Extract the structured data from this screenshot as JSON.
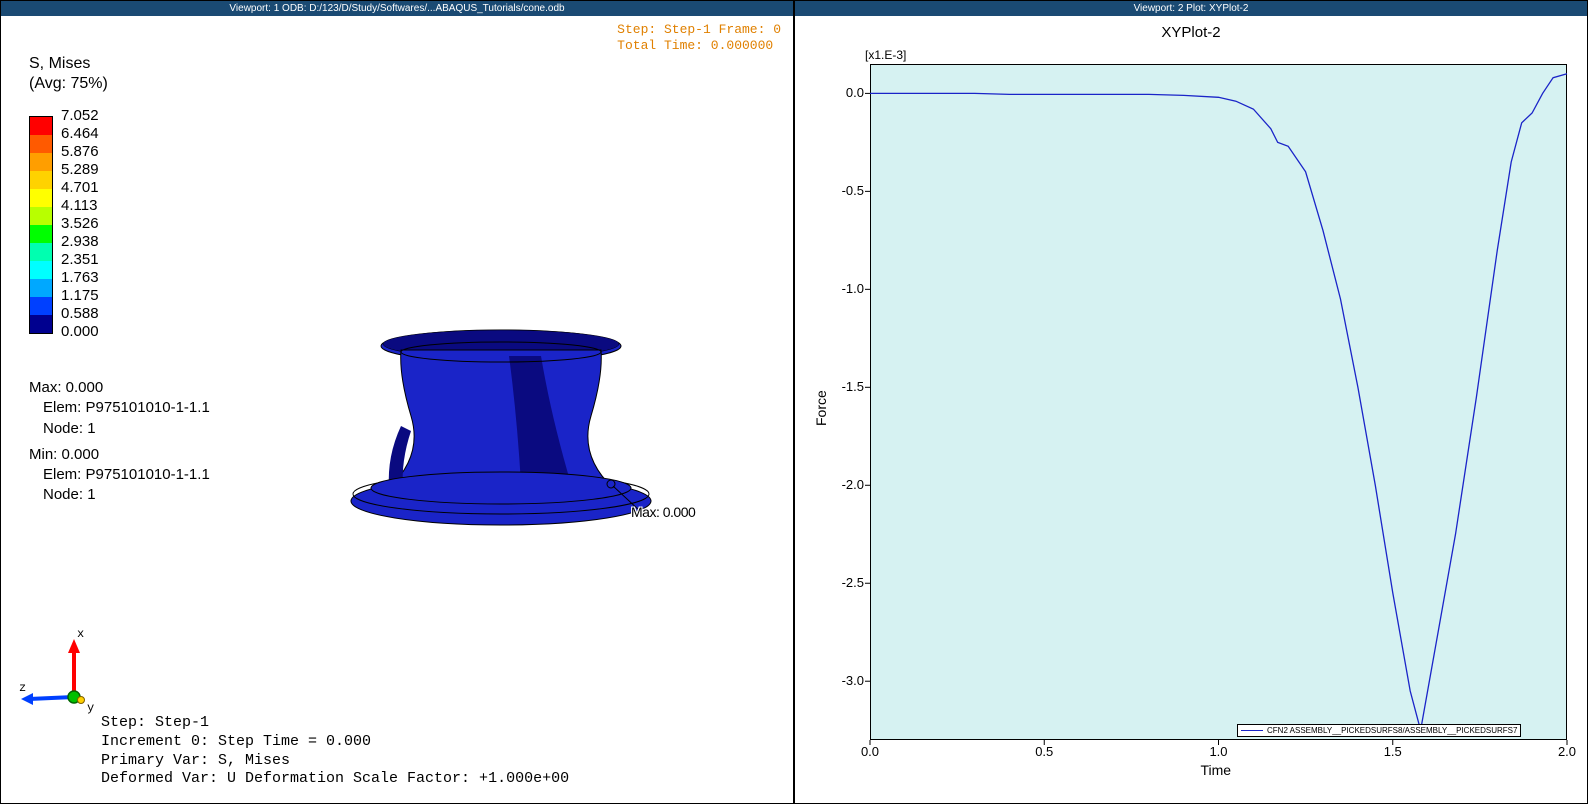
{
  "viewport1": {
    "titlebar": "Viewport: 1    ODB: D:/123/D/Study/Softwares/...ABAQUS_Tutorials/cone.odb",
    "step_info_lines": [
      "Step: Step-1    Frame:  0",
      "Total Time:  0.000000"
    ],
    "legend_title_line1": "S, Mises",
    "legend_title_line2": "(Avg: 75%)",
    "legend_colors": [
      "#ff0000",
      "#ff5a00",
      "#ff9e00",
      "#ffd200",
      "#ffff00",
      "#b8ff00",
      "#00ff00",
      "#00ffb0",
      "#00ffff",
      "#00a8ff",
      "#0040ff",
      "#00008f"
    ],
    "legend_values": [
      "7.052",
      "6.464",
      "5.876",
      "5.289",
      "4.701",
      "4.113",
      "3.526",
      "2.938",
      "2.351",
      "1.763",
      "1.175",
      "0.588",
      "0.000"
    ],
    "minmax": {
      "max_label": "Max: 0.000",
      "max_elem": "Elem: P975101010-1-1.1",
      "max_node": "Node: 1",
      "min_label": "Min: 0.000",
      "min_elem": "Elem: P975101010-1-1.1",
      "min_node": "Node: 1"
    },
    "marker_label": "Max: 0.000",
    "axis_labels": {
      "x": "x",
      "y": "y",
      "z": "z"
    },
    "footer": {
      "l1": "Step: Step-1",
      "l2": "Increment     0: Step Time =    0.000",
      "l3": "Primary Var: S, Mises",
      "l4": "Deformed Var: U   Deformation Scale Factor: +1.000e+00"
    },
    "model_colors": {
      "fill_main": "#1a24c8",
      "fill_dark": "#0a0a80",
      "fill_black": "#000000",
      "outline": "#000000"
    }
  },
  "viewport2": {
    "titlebar": "Viewport: 2    Plot: XYPlot-2",
    "plot_title": "XYPlot-2",
    "y_multiplier": "[x1.E-3]",
    "ylabel": "Force",
    "xlabel": "Time",
    "plot": {
      "type": "line",
      "background_color": "#d6f2f2",
      "line_color": "#1a24c8",
      "line_width": 1.3,
      "xlim": [
        0.0,
        2.0
      ],
      "ylim": [
        -3.3,
        0.15
      ],
      "yticks": [
        0.0,
        -0.5,
        -1.0,
        -1.5,
        -2.0,
        -2.5,
        -3.0
      ],
      "ytick_labels": [
        "0.0",
        "-0.5",
        "-1.0",
        "-1.5",
        "-2.0",
        "-2.5",
        "-3.0"
      ],
      "xticks": [
        0.0,
        0.5,
        1.0,
        1.5,
        2.0
      ],
      "xtick_labels": [
        "0.0",
        "0.5",
        "1.0",
        "1.5",
        "2.0"
      ],
      "series_x": [
        0.0,
        0.1,
        0.2,
        0.3,
        0.4,
        0.5,
        0.6,
        0.7,
        0.8,
        0.9,
        1.0,
        1.05,
        1.1,
        1.15,
        1.17,
        1.2,
        1.25,
        1.3,
        1.35,
        1.4,
        1.45,
        1.5,
        1.55,
        1.58,
        1.62,
        1.68,
        1.74,
        1.8,
        1.84,
        1.87,
        1.9,
        1.93,
        1.96,
        2.0
      ],
      "series_y": [
        0.0,
        0.0,
        0.0,
        0.0,
        -0.005,
        -0.005,
        -0.005,
        -0.005,
        -0.005,
        -0.01,
        -0.02,
        -0.04,
        -0.08,
        -0.18,
        -0.25,
        -0.27,
        -0.4,
        -0.7,
        -1.05,
        -1.5,
        -2.0,
        -2.55,
        -3.05,
        -3.25,
        -2.85,
        -2.25,
        -1.55,
        -0.8,
        -0.35,
        -0.15,
        -0.1,
        0.0,
        0.08,
        0.1
      ]
    },
    "legend_text": "CFN2    ASSEMBLY__PICKEDSURFS8/ASSEMBLY__PICKEDSURFS7"
  }
}
